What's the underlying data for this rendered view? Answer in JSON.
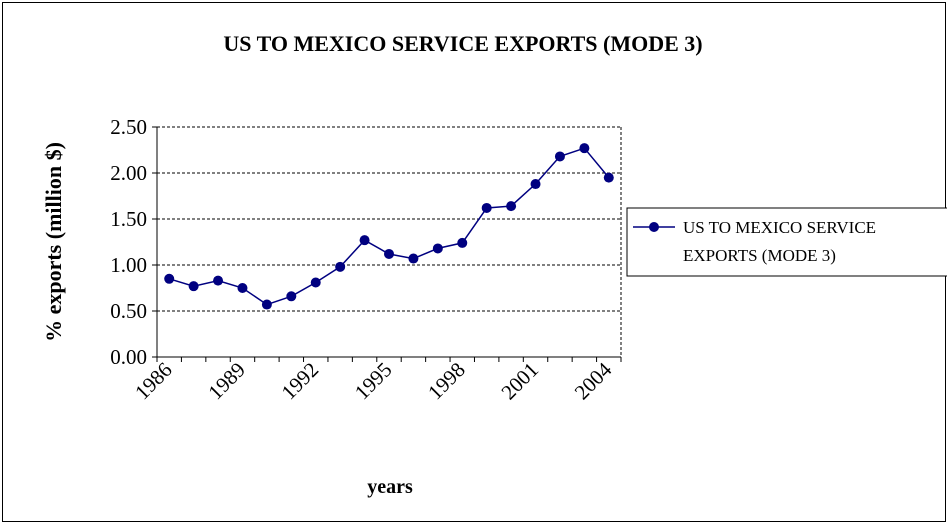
{
  "chart_data": {
    "type": "line",
    "title": "US TO MEXICO SERVICE EXPORTS (MODE 3)",
    "xlabel": "years",
    "ylabel": "% exports (million $)",
    "x": [
      1986,
      1987,
      1988,
      1989,
      1990,
      1991,
      1992,
      1993,
      1994,
      1995,
      1996,
      1997,
      1998,
      1999,
      2000,
      2001,
      2002,
      2003,
      2004
    ],
    "x_tick_labels": [
      "1986",
      "1989",
      "1992",
      "1995",
      "1998",
      "2001",
      "2004"
    ],
    "y_tick_labels": [
      "0.00",
      "0.50",
      "1.00",
      "1.50",
      "2.00",
      "2.50"
    ],
    "ylim": [
      0,
      2.5
    ],
    "grid": true,
    "legend_position": "right",
    "series": [
      {
        "name": "US TO MEXICO SERVICE EXPORTS (MODE 3)",
        "color": "#000080",
        "values": [
          0.85,
          0.77,
          0.83,
          0.75,
          0.57,
          0.66,
          0.81,
          0.98,
          1.27,
          1.12,
          1.07,
          1.18,
          1.24,
          1.62,
          1.64,
          1.88,
          2.18,
          2.27,
          1.95
        ]
      }
    ],
    "legend_lines": [
      "US TO MEXICO SERVICE",
      "EXPORTS (MODE 3)"
    ]
  }
}
